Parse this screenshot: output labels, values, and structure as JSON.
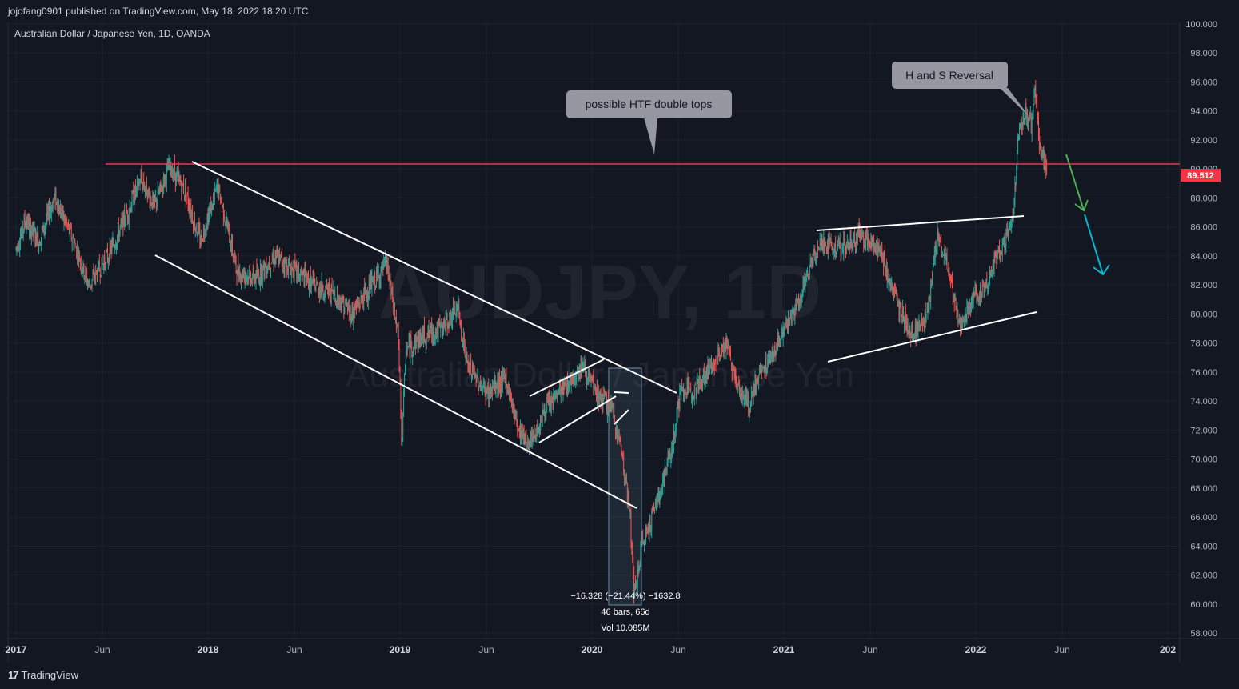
{
  "header": {
    "publisher_line": "jojofang0901 published on TradingView.com, May 18, 2022 18:20 UTC"
  },
  "footer": {
    "brand": "TradingView",
    "brand_mark": "17"
  },
  "chart_data": {
    "type": "candlestick",
    "symbol_line": "Australian Dollar / Japanese Yen, 1D, OANDA",
    "watermark_symbol": "AUDJPY, 1D",
    "watermark_name": "Australian Dollar / Japanese Yen",
    "last_price": "89.512",
    "price_ticks": [
      "100.000",
      "98.000",
      "96.000",
      "94.000",
      "92.000",
      "90.000",
      "88.000",
      "86.000",
      "84.000",
      "82.000",
      "80.000",
      "78.000",
      "76.000",
      "74.000",
      "72.000",
      "70.000",
      "68.000",
      "66.000",
      "64.000",
      "62.000",
      "60.000",
      "58.000"
    ],
    "price_tick_values": [
      100,
      98,
      96,
      94,
      92,
      90,
      88,
      86,
      84,
      82,
      80,
      78,
      76,
      74,
      72,
      70,
      68,
      66,
      64,
      62,
      60,
      58
    ],
    "ylim": [
      58,
      100
    ],
    "time_ticks": [
      "2017",
      "Jun",
      "2018",
      "Jun",
      "2019",
      "Jun",
      "2020",
      "Jun",
      "2021",
      "Jun",
      "2022",
      "Jun",
      "202"
    ],
    "time_tick_values": [
      2017.0,
      2017.45,
      2018.0,
      2018.45,
      2019.0,
      2019.45,
      2020.0,
      2020.45,
      2021.0,
      2021.45,
      2022.0,
      2022.45,
      2023.0
    ],
    "price_path": [
      [
        2017.0,
        84.5
      ],
      [
        2017.05,
        86.5
      ],
      [
        2017.12,
        85.0
      ],
      [
        2017.2,
        88.0
      ],
      [
        2017.3,
        85.0
      ],
      [
        2017.38,
        82.0
      ],
      [
        2017.48,
        84.0
      ],
      [
        2017.58,
        87.0
      ],
      [
        2017.65,
        89.3
      ],
      [
        2017.72,
        87.5
      ],
      [
        2017.8,
        90.2
      ],
      [
        2017.88,
        88.5
      ],
      [
        2017.96,
        85.0
      ],
      [
        2018.05,
        88.8
      ],
      [
        2018.1,
        86.0
      ],
      [
        2018.15,
        83.0
      ],
      [
        2018.25,
        82.5
      ],
      [
        2018.35,
        84.0
      ],
      [
        2018.45,
        83.0
      ],
      [
        2018.55,
        82.0
      ],
      [
        2018.65,
        81.5
      ],
      [
        2018.75,
        80.0
      ],
      [
        2018.85,
        82.0
      ],
      [
        2018.93,
        83.5
      ],
      [
        2018.99,
        78.5
      ],
      [
        2019.01,
        71.0
      ],
      [
        2019.03,
        77.5
      ],
      [
        2019.12,
        78.5
      ],
      [
        2019.22,
        79.0
      ],
      [
        2019.3,
        80.5
      ],
      [
        2019.35,
        76.5
      ],
      [
        2019.45,
        74.5
      ],
      [
        2019.55,
        75.5
      ],
      [
        2019.62,
        72.0
      ],
      [
        2019.68,
        71.0
      ],
      [
        2019.76,
        73.5
      ],
      [
        2019.86,
        75.0
      ],
      [
        2019.95,
        76.5
      ],
      [
        2020.02,
        74.5
      ],
      [
        2020.1,
        73.5
      ],
      [
        2020.15,
        71.0
      ],
      [
        2020.2,
        66.0
      ],
      [
        2020.22,
        60.5
      ],
      [
        2020.26,
        64.0
      ],
      [
        2020.35,
        67.5
      ],
      [
        2020.42,
        71.0
      ],
      [
        2020.46,
        74.5
      ],
      [
        2020.55,
        75.0
      ],
      [
        2020.65,
        77.0
      ],
      [
        2020.7,
        78.0
      ],
      [
        2020.75,
        75.5
      ],
      [
        2020.82,
        73.5
      ],
      [
        2020.86,
        75.5
      ],
      [
        2020.95,
        77.5
      ],
      [
        2021.05,
        80.0
      ],
      [
        2021.12,
        82.5
      ],
      [
        2021.18,
        85.0
      ],
      [
        2021.3,
        84.5
      ],
      [
        2021.4,
        85.5
      ],
      [
        2021.5,
        84.5
      ],
      [
        2021.58,
        81.0
      ],
      [
        2021.67,
        78.5
      ],
      [
        2021.75,
        80.0
      ],
      [
        2021.8,
        85.5
      ],
      [
        2021.86,
        83.0
      ],
      [
        2021.92,
        79.0
      ],
      [
        2021.98,
        81.0
      ],
      [
        2022.05,
        82.0
      ],
      [
        2022.12,
        84.0
      ],
      [
        2022.17,
        85.5
      ],
      [
        2022.2,
        88.0
      ],
      [
        2022.22,
        92.0
      ],
      [
        2022.26,
        94.0
      ],
      [
        2022.29,
        93.0
      ],
      [
        2022.31,
        95.5
      ],
      [
        2022.33,
        92.0
      ],
      [
        2022.35,
        91.0
      ],
      [
        2022.37,
        89.5
      ]
    ],
    "annotations": [
      {
        "text": "possible HTF double tops"
      },
      {
        "text": "H and S Reversal"
      }
    ],
    "measure": {
      "line1": "−16.328 (−21.44%) −1632.8",
      "line2": "46 bars, 66d",
      "line3": "Vol 10.085M"
    },
    "colors": {
      "up": "#26a69a",
      "down": "#ef5350",
      "hline": "#f23645",
      "trend": "#ffffff",
      "arrow1": "#4caf50",
      "arrow2": "#00bcd4",
      "bg": "#131722",
      "grid": "#1c2030"
    }
  }
}
